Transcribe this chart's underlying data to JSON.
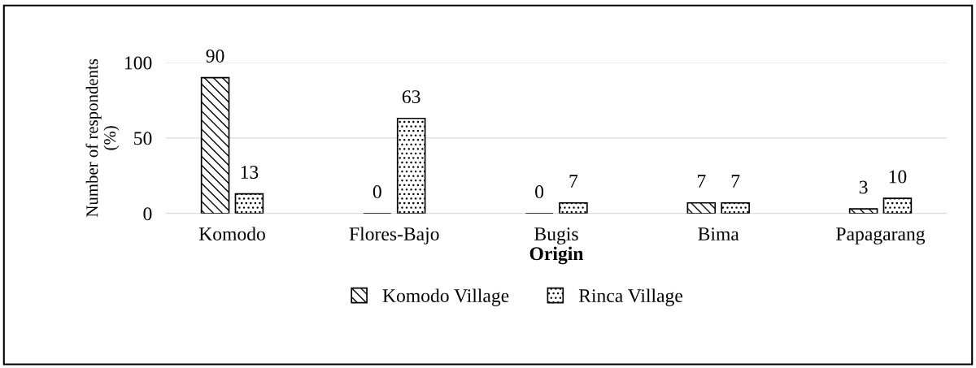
{
  "chart_data": {
    "type": "bar",
    "xlabel": "Origin",
    "ylabel": "Number of respondents\n(%)",
    "categories": [
      "Komodo",
      "Flores-Bajo",
      "Bugis",
      "Bima",
      "Papagarang"
    ],
    "series": [
      {
        "name": "Komodo Village",
        "color": "#000000",
        "values": [
          90,
          0,
          0,
          7,
          3
        ]
      },
      {
        "name": "Rinca Village",
        "color": "#000000",
        "values": [
          13,
          63,
          7,
          7,
          10
        ]
      }
    ],
    "ylim": [
      0,
      100
    ],
    "yticks": [
      0,
      50,
      100
    ],
    "grid": "y",
    "legend": "bottom",
    "data_labels": true
  }
}
